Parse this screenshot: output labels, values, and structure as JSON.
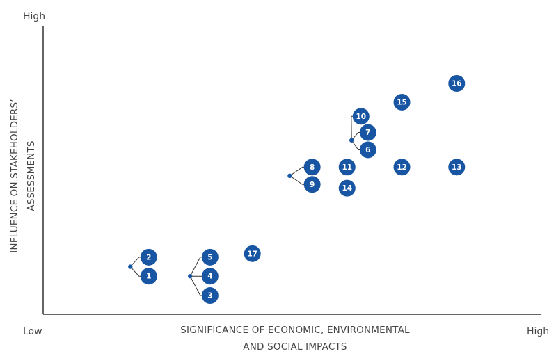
{
  "chart_data": {
    "type": "scatter",
    "title": "",
    "xlabel_lines": [
      "SIGNIFICANCE OF ECONOMIC, ENVIRONMENTAL",
      "AND SOCIAL IMPACTS"
    ],
    "ylabel_lines": [
      "INFLUENCE ON STAKEHOLDERS’",
      "ASSESSMENTS"
    ],
    "x_low_label": "Low",
    "x_high_label": "High",
    "y_high_label": "High",
    "xlim": [
      0,
      100
    ],
    "ylim": [
      0,
      100
    ],
    "grid": false,
    "marker_color": "#1856a3",
    "axis_color": "#333333",
    "points": [
      {
        "label": "1",
        "x": 21.2,
        "y": 13.2
      },
      {
        "label": "2",
        "x": 21.2,
        "y": 19.8
      },
      {
        "label": "3",
        "x": 33.5,
        "y": 6.5
      },
      {
        "label": "4",
        "x": 33.5,
        "y": 13.2
      },
      {
        "label": "5",
        "x": 33.5,
        "y": 19.8
      },
      {
        "label": "6",
        "x": 65.2,
        "y": 57.0
      },
      {
        "label": "7",
        "x": 65.2,
        "y": 63.0
      },
      {
        "label": "8",
        "x": 54.0,
        "y": 51.0
      },
      {
        "label": "9",
        "x": 54.0,
        "y": 45.0
      },
      {
        "label": "10",
        "x": 63.8,
        "y": 68.6
      },
      {
        "label": "11",
        "x": 61.0,
        "y": 51.0
      },
      {
        "label": "12",
        "x": 72.0,
        "y": 51.0
      },
      {
        "label": "13",
        "x": 83.0,
        "y": 51.0
      },
      {
        "label": "14",
        "x": 61.0,
        "y": 43.7
      },
      {
        "label": "15",
        "x": 72.0,
        "y": 73.5
      },
      {
        "label": "16",
        "x": 83.0,
        "y": 80.0
      },
      {
        "label": "17",
        "x": 42.0,
        "y": 21.0
      }
    ],
    "groups": [
      {
        "hub": [
          17.5,
          16.5
        ],
        "members": [
          "2",
          "1"
        ]
      },
      {
        "hub": [
          29.5,
          13.2
        ],
        "members": [
          "5",
          "4",
          "3"
        ]
      },
      {
        "hub": [
          49.5,
          48.0
        ],
        "members": [
          "8",
          "9"
        ]
      },
      {
        "hub": [
          61.9,
          60.3
        ],
        "members": [
          "10",
          "7",
          "6"
        ]
      }
    ]
  }
}
